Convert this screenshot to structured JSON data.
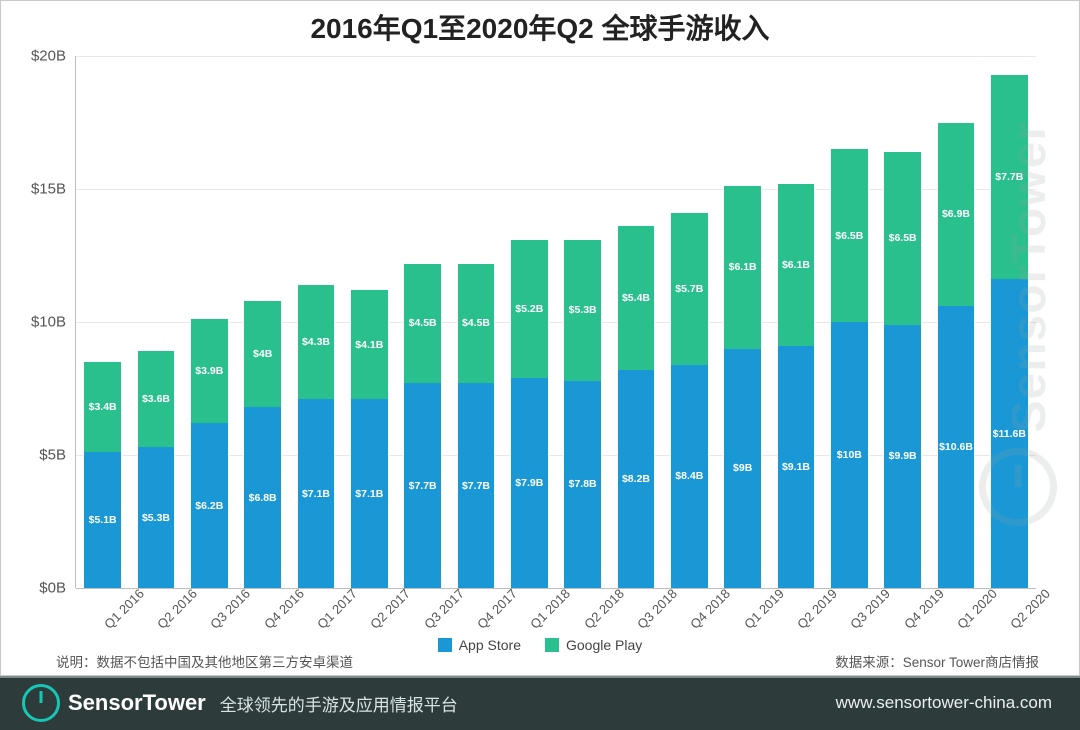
{
  "chart": {
    "type": "stacked-bar",
    "title": "2016年Q1至2020年Q2 全球手游收入",
    "y_axis": {
      "min": 0,
      "max": 20,
      "tick_step": 5,
      "ticks": [
        "$0B",
        "$5B",
        "$10B",
        "$15B",
        "$20B"
      ]
    },
    "colors": {
      "app_store": "#1998d5",
      "google_play": "#29c08d",
      "grid": "#e8e8e8",
      "axis": "#bdbdbd",
      "text": "#555555",
      "background": "#ffffff",
      "bar_label": "#ffffff"
    },
    "series_names": {
      "app_store": "App Store",
      "google_play": "Google Play"
    },
    "bar_width_ratio": 0.72,
    "bar_label_fontsize": 10.5,
    "title_fontsize": 28,
    "categories": [
      "Q1 2016",
      "Q2 2016",
      "Q3 2016",
      "Q4 2016",
      "Q1 2017",
      "Q2 2017",
      "Q3 2017",
      "Q4 2017",
      "Q1 2018",
      "Q2 2018",
      "Q3 2018",
      "Q4 2018",
      "Q1 2019",
      "Q2 2019",
      "Q3 2019",
      "Q4 2019",
      "Q1 2020",
      "Q2 2020"
    ],
    "app_store_values": [
      5.1,
      5.3,
      6.2,
      6.8,
      7.1,
      7.1,
      7.7,
      7.7,
      7.9,
      7.8,
      8.2,
      8.4,
      9.0,
      9.1,
      10.0,
      9.9,
      10.6,
      11.6
    ],
    "google_play_values": [
      3.4,
      3.6,
      3.9,
      4.0,
      4.3,
      4.1,
      4.5,
      4.5,
      5.2,
      5.3,
      5.4,
      5.7,
      6.1,
      6.1,
      6.5,
      6.5,
      6.9,
      7.7
    ],
    "app_store_labels": [
      "$5.1B",
      "$5.3B",
      "$6.2B",
      "$6.8B",
      "$7.1B",
      "$7.1B",
      "$7.7B",
      "$7.7B",
      "$7.9B",
      "$7.8B",
      "$8.2B",
      "$8.4B",
      "$9B",
      "$9.1B",
      "$10B",
      "$9.9B",
      "$10.6B",
      "$11.6B"
    ],
    "google_play_labels": [
      "$3.4B",
      "$3.6B",
      "$3.9B",
      "$4B",
      "$4.3B",
      "$4.1B",
      "$4.5B",
      "$4.5B",
      "$5.2B",
      "$5.3B",
      "$5.4B",
      "$5.7B",
      "$6.1B",
      "$6.1B",
      "$6.5B",
      "$6.5B",
      "$6.9B",
      "$7.7B"
    ],
    "caption_left": "说明：数据不包括中国及其他地区第三方安卓渠道",
    "caption_right": "数据来源：Sensor Tower商店情报",
    "watermark_text": "SensorTower"
  },
  "footer": {
    "brand": "SensorTower",
    "tagline": "全球领先的手游及应用情报平台",
    "url": "www.sensortower-china.com",
    "bg_color": "#2e3b3b",
    "accent_color": "#17c6b5"
  }
}
